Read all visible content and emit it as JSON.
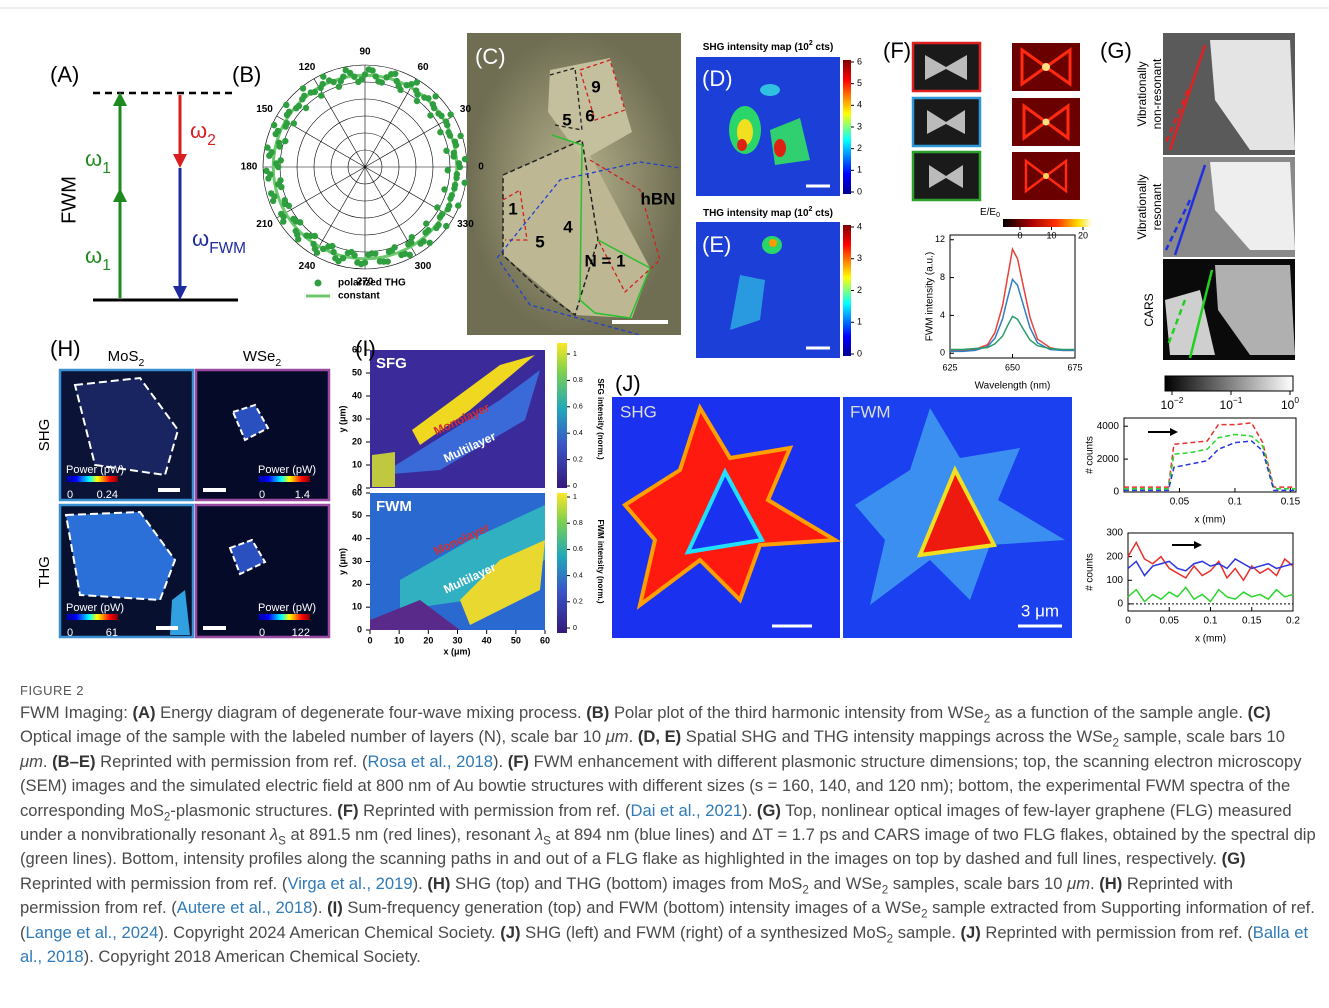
{
  "header": {
    "label": "FIGURE 2"
  },
  "panels": {
    "A": {
      "label": "(A)",
      "side": "FWM",
      "w1_top": {
        "text": "ω",
        "sub": "1"
      },
      "w1_bottom": {
        "text": "ω",
        "sub": "1"
      },
      "w2": {
        "text": "ω",
        "sub": "2"
      },
      "wfwm": {
        "text": "ω",
        "sub": "FWM"
      }
    },
    "B": {
      "label": "(B)",
      "angle_ticks": [
        0,
        30,
        60,
        90,
        120,
        150,
        180,
        210,
        240,
        270,
        300,
        330
      ],
      "legend": [
        "polarized THG",
        "constant"
      ],
      "color": "#2e9e3e",
      "line_color": "#6cc86c"
    },
    "C": {
      "label": "(C)",
      "layers": [
        "9",
        "6",
        "5",
        "1",
        "5",
        "4",
        "N = 1"
      ],
      "substrate": "hBN"
    },
    "D": {
      "label": "(D)",
      "title": {
        "text": "SHG intensity map (10",
        "sup": "2",
        "tail": " cts)"
      },
      "cbar_ticks": [
        0,
        1,
        2,
        3,
        4,
        5,
        6
      ]
    },
    "E": {
      "label": "(E)",
      "title": {
        "text": "THG intensity map (10",
        "sup": "2",
        "tail": " cts)"
      },
      "cbar_ticks": [
        0,
        1,
        2,
        3,
        4
      ]
    },
    "F": {
      "label": "(F)",
      "field_label": {
        "text": "E/E",
        "sub": "0"
      },
      "field_ticks": [
        0,
        10,
        20
      ],
      "chart": {
        "type": "line",
        "xlabel": "Wavelength (nm)",
        "ylabel": "FWM intensity (a.u.)",
        "x": [
          625,
          630,
          635,
          640,
          643,
          646,
          648,
          650,
          652,
          654,
          657,
          660,
          665,
          670,
          675
        ],
        "series": [
          {
            "color": "#e8413c",
            "values": [
              0.3,
              0.3,
              0.4,
              0.9,
              2.2,
              5.0,
              8.0,
              11,
              10,
              7.5,
              3.8,
              1.5,
              0.6,
              0.3,
              0.3
            ]
          },
          {
            "color": "#2f7fc1",
            "values": [
              0.2,
              0.2,
              0.3,
              0.7,
              1.6,
              3.6,
              5.8,
              7.8,
              7.2,
              5.4,
              2.7,
              1.1,
              0.4,
              0.3,
              0.3
            ]
          },
          {
            "color": "#2a9d6a",
            "values": [
              0.4,
              0.4,
              0.5,
              0.6,
              1.0,
              1.8,
              2.9,
              3.9,
              3.6,
              2.7,
              1.4,
              0.8,
              0.5,
              0.4,
              0.4
            ]
          }
        ],
        "xlim": [
          625,
          675
        ],
        "ylim": [
          -0.5,
          12.5
        ],
        "xticks": [
          625,
          650,
          675
        ],
        "yticks": [
          0,
          4,
          8,
          12
        ]
      }
    },
    "G": {
      "label": "(G)",
      "rows": [
        [
          "Vibrationally",
          "non-resonant"
        ],
        [
          "Vibrationally",
          "resonant"
        ],
        [
          "CARS"
        ]
      ],
      "cbar_ticks": [
        {
          "value": 0.01,
          "label": {
            "text": "10",
            "sup": "−2"
          }
        },
        {
          "value": 0.1,
          "label": {
            "text": "10",
            "sup": "−1"
          }
        },
        {
          "value": 1,
          "label": {
            "text": "10",
            "sup": "0"
          }
        }
      ],
      "charts": [
        {
          "type": "line",
          "xlabel": "x (mm)",
          "ylabel": "# counts",
          "x": [
            0,
            0.02,
            0.04,
            0.045,
            0.06,
            0.075,
            0.085,
            0.1,
            0.115,
            0.125,
            0.135,
            0.145,
            0.155
          ],
          "series": [
            {
              "color": "#e8312c",
              "dash": true,
              "values": [
                300,
                300,
                300,
                2900,
                3000,
                3100,
                4100,
                4100,
                4200,
                3000,
                300,
                300,
                300
              ]
            },
            {
              "color": "#2bd62b",
              "dash": true,
              "values": [
                200,
                200,
                200,
                2300,
                2400,
                2600,
                3300,
                3500,
                3400,
                2800,
                200,
                200,
                200
              ]
            },
            {
              "color": "#2b35e0",
              "dash": true,
              "values": [
                100,
                100,
                100,
                1500,
                1700,
                1900,
                2600,
                3000,
                3100,
                2500,
                100,
                100,
                100
              ]
            }
          ],
          "xlim": [
            0,
            0.155
          ],
          "ylim": [
            0,
            4500
          ],
          "xticks": [
            0.05,
            0.1,
            0.15
          ],
          "yticks": [
            0,
            2000,
            4000
          ]
        },
        {
          "type": "line",
          "xlabel": "x (mm)",
          "ylabel": "# counts",
          "x": [
            0,
            0.01,
            0.02,
            0.03,
            0.04,
            0.05,
            0.06,
            0.07,
            0.08,
            0.09,
            0.1,
            0.11,
            0.12,
            0.13,
            0.14,
            0.15,
            0.16,
            0.17,
            0.18,
            0.19,
            0.2
          ],
          "series": [
            {
              "color": "#e8312c",
              "values": [
                200,
                260,
                190,
                170,
                200,
                150,
                130,
                110,
                160,
                120,
                140,
                180,
                110,
                150,
                100,
                160,
                130,
                150,
                120,
                190,
                160
              ]
            },
            {
              "color": "#2b35e0",
              "values": [
                150,
                180,
                120,
                160,
                170,
                180,
                150,
                140,
                170,
                180,
                160,
                170,
                150,
                190,
                170,
                150,
                160,
                170,
                150,
                160,
                170
              ]
            },
            {
              "color": "#2bd62b",
              "values": [
                30,
                60,
                10,
                40,
                20,
                50,
                30,
                70,
                20,
                40,
                10,
                60,
                30,
                20,
                50,
                30,
                40,
                20,
                60,
                30,
                40
              ]
            }
          ],
          "xlim": [
            0,
            0.2
          ],
          "ylim": [
            -30,
            300
          ],
          "xticks": [
            0,
            0.05,
            0.1,
            0.15,
            0.2
          ],
          "yticks": [
            0,
            100,
            200,
            300
          ]
        }
      ]
    },
    "H": {
      "label": "(H)",
      "columns": [
        {
          "text": "MoS",
          "sub": "2"
        },
        {
          "text": "WSe",
          "sub": "2"
        }
      ],
      "rows": [
        "SHG",
        "THG"
      ],
      "scales": [
        {
          "title": "Power (pW)",
          "min": 0,
          "max": 0.24
        },
        {
          "title": "Power (pW)",
          "min": 0,
          "max": 1.4
        },
        {
          "title": "Power (pW)",
          "min": 0,
          "max": 61
        },
        {
          "title": "Power (pW)",
          "min": 0,
          "max": 122
        }
      ]
    },
    "I": {
      "label": "(I)",
      "plots": [
        {
          "name": "SFG",
          "cbar_title": "SFG intensity (norm.)",
          "regions": [
            "Monolayer",
            "Multilayer"
          ]
        },
        {
          "name": "FWM",
          "cbar_title": "FWM intensity (norm.)",
          "regions": [
            "Monolayer",
            "Multilayer"
          ]
        }
      ],
      "xlabel": "x (μm)",
      "ylabel": "y (μm)",
      "xlim": [
        0,
        60
      ],
      "ylim": [
        0,
        60
      ],
      "xticks": [
        0,
        10,
        20,
        30,
        40,
        50,
        60
      ],
      "yticks": [
        0,
        10,
        20,
        30,
        40,
        50,
        60
      ],
      "cbar_ticks": [
        0,
        0.2,
        0.4,
        0.6,
        0.8,
        1
      ]
    },
    "J": {
      "label": "(J)",
      "left": "SHG",
      "right": "FWM",
      "scale": "3 μm"
    }
  },
  "caption": {
    "segments": [
      {
        "text": "FWM Imaging: "
      },
      {
        "text": "(A)",
        "style": "b"
      },
      {
        "text": " Energy diagram of degenerate four-wave mixing process. "
      },
      {
        "text": "(B)",
        "style": "b"
      },
      {
        "text": " Polar plot of the third harmonic intensity from WSe"
      },
      {
        "text": "2",
        "style": "sub"
      },
      {
        "text": " as a function of the sample angle. "
      },
      {
        "text": "(C)",
        "style": "b"
      },
      {
        "text": " Optical image of the sample with the labeled number of layers (N), scale bar 10 "
      },
      {
        "text": "μm",
        "style": "i"
      },
      {
        "text": ". "
      },
      {
        "text": "(D, E)",
        "style": "b"
      },
      {
        "text": " Spatial SHG and THG intensity mappings across the WSe"
      },
      {
        "text": "2",
        "style": "sub"
      },
      {
        "text": " sample, scale bars 10 "
      },
      {
        "text": "μm",
        "style": "i"
      },
      {
        "text": ". "
      },
      {
        "text": "(B–E)",
        "style": "b"
      },
      {
        "text": " Reprinted with permission from ref. ("
      },
      {
        "text": "Rosa et al., 2018",
        "style": "link"
      },
      {
        "text": "). "
      },
      {
        "text": "(F)",
        "style": "b"
      },
      {
        "text": " FWM enhancement with different plasmonic structure dimensions; top, the scanning electron microscopy (SEM) images and the simulated electric field at 800 nm of Au bowtie structures with different sizes (s = 160, 140, and 120 nm); bottom, the experimental FWM spectra of the corresponding MoS"
      },
      {
        "text": "2",
        "style": "sub"
      },
      {
        "text": "-plasmonic structures. "
      },
      {
        "text": "(F)",
        "style": "b"
      },
      {
        "text": " Reprinted with permission from ref. ("
      },
      {
        "text": "Dai et al., 2021",
        "style": "link"
      },
      {
        "text": "). "
      },
      {
        "text": "(G)",
        "style": "b"
      },
      {
        "text": " Top, nonlinear optical images of few-layer graphene (FLG) measured under a nonvibrationally resonant "
      },
      {
        "text": "λ",
        "style": "i"
      },
      {
        "text": "S",
        "style": "sub"
      },
      {
        "text": " at 891.5 nm (red lines), resonant "
      },
      {
        "text": "λ",
        "style": "i"
      },
      {
        "text": "S",
        "style": "sub"
      },
      {
        "text": " at 894 nm (blue lines) and ΔT = 1.7 ps and CARS image of two FLG flakes, obtained by the spectral dip (green lines). Bottom, intensity profiles along the scanning paths in and out of a FLG flake as highlighted in the images on top by dashed and full lines, respectively. "
      },
      {
        "text": "(G)",
        "style": "b"
      },
      {
        "text": " Reprinted with permission from ref. ("
      },
      {
        "text": "Virga et al., 2019",
        "style": "link"
      },
      {
        "text": "). "
      },
      {
        "text": "(H)",
        "style": "b"
      },
      {
        "text": " SHG (top) and THG (bottom) images from MoS"
      },
      {
        "text": "2",
        "style": "sub"
      },
      {
        "text": " and WSe"
      },
      {
        "text": "2",
        "style": "sub"
      },
      {
        "text": " samples, scale bars 10 "
      },
      {
        "text": "μm",
        "style": "i"
      },
      {
        "text": ". "
      },
      {
        "text": "(H)",
        "style": "b"
      },
      {
        "text": " Reprinted with permission from ref. ("
      },
      {
        "text": "Autere et al., 2018",
        "style": "link"
      },
      {
        "text": "). "
      },
      {
        "text": "(I)",
        "style": "b"
      },
      {
        "text": " Sum-frequency generation (top) and FWM (bottom) intensity images of a WSe"
      },
      {
        "text": "2",
        "style": "sub"
      },
      {
        "text": " sample extracted from Supporting information of ref. ("
      },
      {
        "text": "Lange et al., 2024",
        "style": "link"
      },
      {
        "text": "). Copyright 2024 American Chemical Society. "
      },
      {
        "text": "(J)",
        "style": "b"
      },
      {
        "text": " SHG (left) and FWM (right) of a synthesized MoS"
      },
      {
        "text": "2",
        "style": "sub"
      },
      {
        "text": " sample. "
      },
      {
        "text": "(J)",
        "style": "b"
      },
      {
        "text": " Reprinted with permission from ref. ("
      },
      {
        "text": "Balla et al., 2018",
        "style": "link"
      },
      {
        "text": "). Copyright 2018 American Chemical Society."
      }
    ]
  }
}
